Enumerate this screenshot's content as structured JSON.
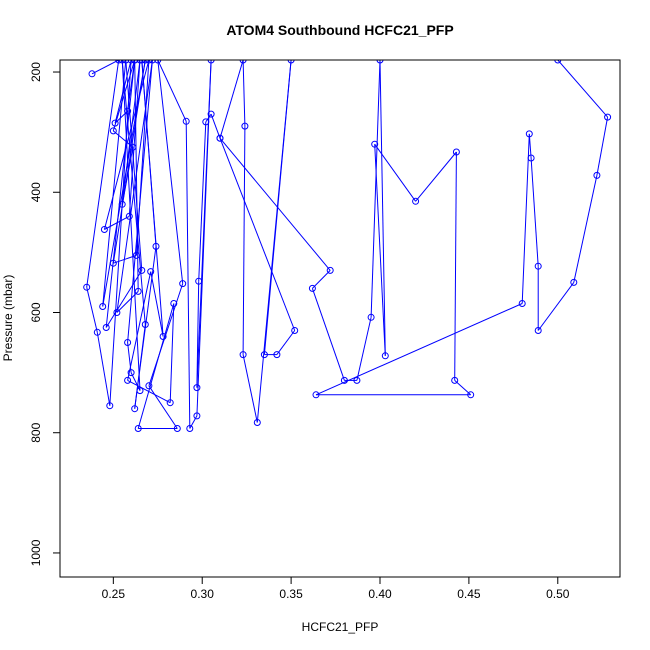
{
  "chart_data": {
    "type": "line",
    "title": "ATOM4 Southbound HCFC21_PFP",
    "xlabel": "HCFC21_PFP",
    "ylabel": "Pressure (mbar)",
    "xlim": [
      0.22,
      0.535
    ],
    "ylim": [
      1040,
      180
    ],
    "x_ticks": [
      0.25,
      0.3,
      0.35,
      0.4,
      0.45,
      0.5
    ],
    "x_tick_labels": [
      "0.25",
      "0.30",
      "0.35",
      "0.40",
      "0.45",
      "0.50"
    ],
    "y_ticks": [
      200,
      400,
      600,
      800,
      1000
    ],
    "y_tick_labels": [
      "200",
      "400",
      "600",
      "800",
      "1000"
    ],
    "grid": false,
    "legend": "none",
    "series": [
      {
        "color": "#0000ff",
        "marker": "open-circle",
        "points": [
          [
            0.238,
            203
          ],
          [
            0.253,
            180
          ],
          [
            0.235,
            558
          ],
          [
            0.241,
            633
          ],
          [
            0.248,
            755
          ],
          [
            0.26,
            180
          ],
          [
            0.251,
            285
          ],
          [
            0.258,
            265
          ],
          [
            0.262,
            180
          ],
          [
            0.25,
            298
          ],
          [
            0.261,
            325
          ],
          [
            0.255,
            420
          ],
          [
            0.265,
            180
          ],
          [
            0.259,
            440
          ],
          [
            0.245,
            462
          ],
          [
            0.27,
            180
          ],
          [
            0.263,
            505
          ],
          [
            0.25,
            518
          ],
          [
            0.268,
            180
          ],
          [
            0.244,
            590
          ],
          [
            0.257,
            180
          ],
          [
            0.266,
            530
          ],
          [
            0.246,
            625
          ],
          [
            0.262,
            180
          ],
          [
            0.264,
            565
          ],
          [
            0.252,
            600
          ],
          [
            0.272,
            180
          ],
          [
            0.258,
            650
          ],
          [
            0.26,
            700
          ],
          [
            0.265,
            730
          ],
          [
            0.255,
            180
          ],
          [
            0.268,
            620
          ],
          [
            0.262,
            760
          ],
          [
            0.274,
            490
          ],
          [
            0.266,
            180
          ],
          [
            0.278,
            640
          ],
          [
            0.271,
            532
          ],
          [
            0.258,
            713
          ],
          [
            0.282,
            750
          ],
          [
            0.284,
            585
          ],
          [
            0.264,
            793
          ],
          [
            0.286,
            793
          ],
          [
            0.27,
            722
          ],
          [
            0.289,
            552
          ],
          [
            0.275,
            180
          ],
          [
            0.291,
            282
          ],
          [
            0.293,
            793
          ],
          [
            0.297,
            772
          ],
          [
            0.305,
            180
          ],
          [
            0.297,
            725
          ],
          [
            0.298,
            548
          ],
          [
            0.302,
            283
          ],
          [
            0.305,
            270
          ],
          [
            0.31,
            310
          ],
          [
            0.323,
            180
          ],
          [
            0.324,
            290
          ],
          [
            0.323,
            670
          ],
          [
            0.331,
            783
          ],
          [
            0.35,
            180
          ],
          [
            0.335,
            670
          ],
          [
            0.342,
            670
          ],
          [
            0.352,
            630
          ],
          [
            0.31,
            310
          ],
          [
            0.372,
            530
          ],
          [
            0.362,
            560
          ],
          [
            0.38,
            713
          ],
          [
            0.387,
            713
          ],
          [
            0.395,
            608
          ],
          [
            0.4,
            180
          ],
          [
            0.403,
            672
          ],
          [
            0.397,
            320
          ],
          [
            0.42,
            415
          ],
          [
            0.443,
            333
          ],
          [
            0.442,
            713
          ],
          [
            0.451,
            737
          ],
          [
            0.364,
            737
          ],
          [
            0.48,
            585
          ],
          [
            0.484,
            303
          ],
          [
            0.485,
            343
          ],
          [
            0.489,
            523
          ],
          [
            0.489,
            630
          ],
          [
            0.509,
            550
          ],
          [
            0.522,
            372
          ],
          [
            0.528,
            275
          ],
          [
            0.5,
            180
          ]
        ]
      }
    ]
  }
}
